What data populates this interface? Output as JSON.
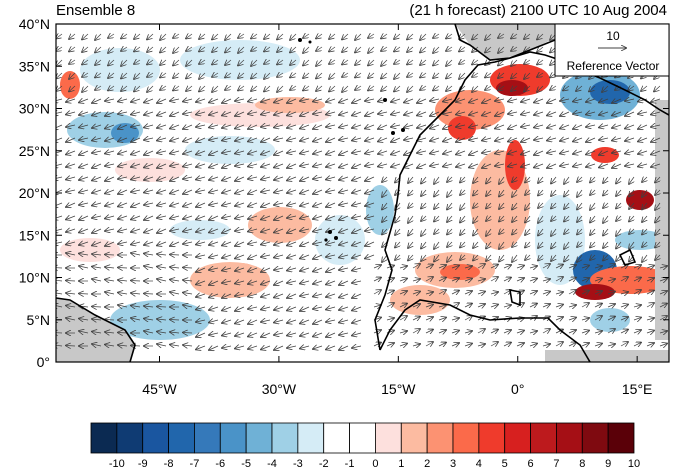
{
  "title_left": "Ensemble 8",
  "title_right": "(21 h forecast) 2100 UTC 10 Aug 2004",
  "map": {
    "lat_ticks": [
      "40°N",
      "35°N",
      "30°N",
      "25°N",
      "20°N",
      "15°N",
      "10°N",
      "5°N",
      "0°"
    ],
    "lon_ticks": [
      "45°W",
      "30°W",
      "15°W",
      "0°",
      "15°E"
    ],
    "lat_range": [
      0,
      40
    ],
    "lon_range": [
      -58,
      19
    ],
    "lon_tick_values": [
      -45,
      -30,
      -15,
      0,
      15
    ]
  },
  "reference_vector": {
    "magnitude": "10",
    "label": "Reference Vector"
  },
  "colorbar": {
    "labels": [
      "-10",
      "-9",
      "-8",
      "-7",
      "-6",
      "-5",
      "-4",
      "-3",
      "-2",
      "-1",
      "0",
      "1",
      "2",
      "3",
      "4",
      "5",
      "6",
      "7",
      "8",
      "9",
      "10"
    ],
    "colors": [
      "#0b2a52",
      "#0f3b73",
      "#1a56a0",
      "#2166ac",
      "#3579ba",
      "#4a93c8",
      "#6fb1d6",
      "#9fd0e6",
      "#d5ecf6",
      "#ffffff",
      "#ffffff",
      "#fde0dd",
      "#fcbba1",
      "#fc9272",
      "#fb6a4a",
      "#ef3b2c",
      "#d7201f",
      "#bd1a1d",
      "#a50f15",
      "#7f0a10",
      "#5a0008"
    ]
  },
  "colors": {
    "land_gray": "#c8c8c8",
    "coast": "#000000",
    "vector": "#404040"
  }
}
